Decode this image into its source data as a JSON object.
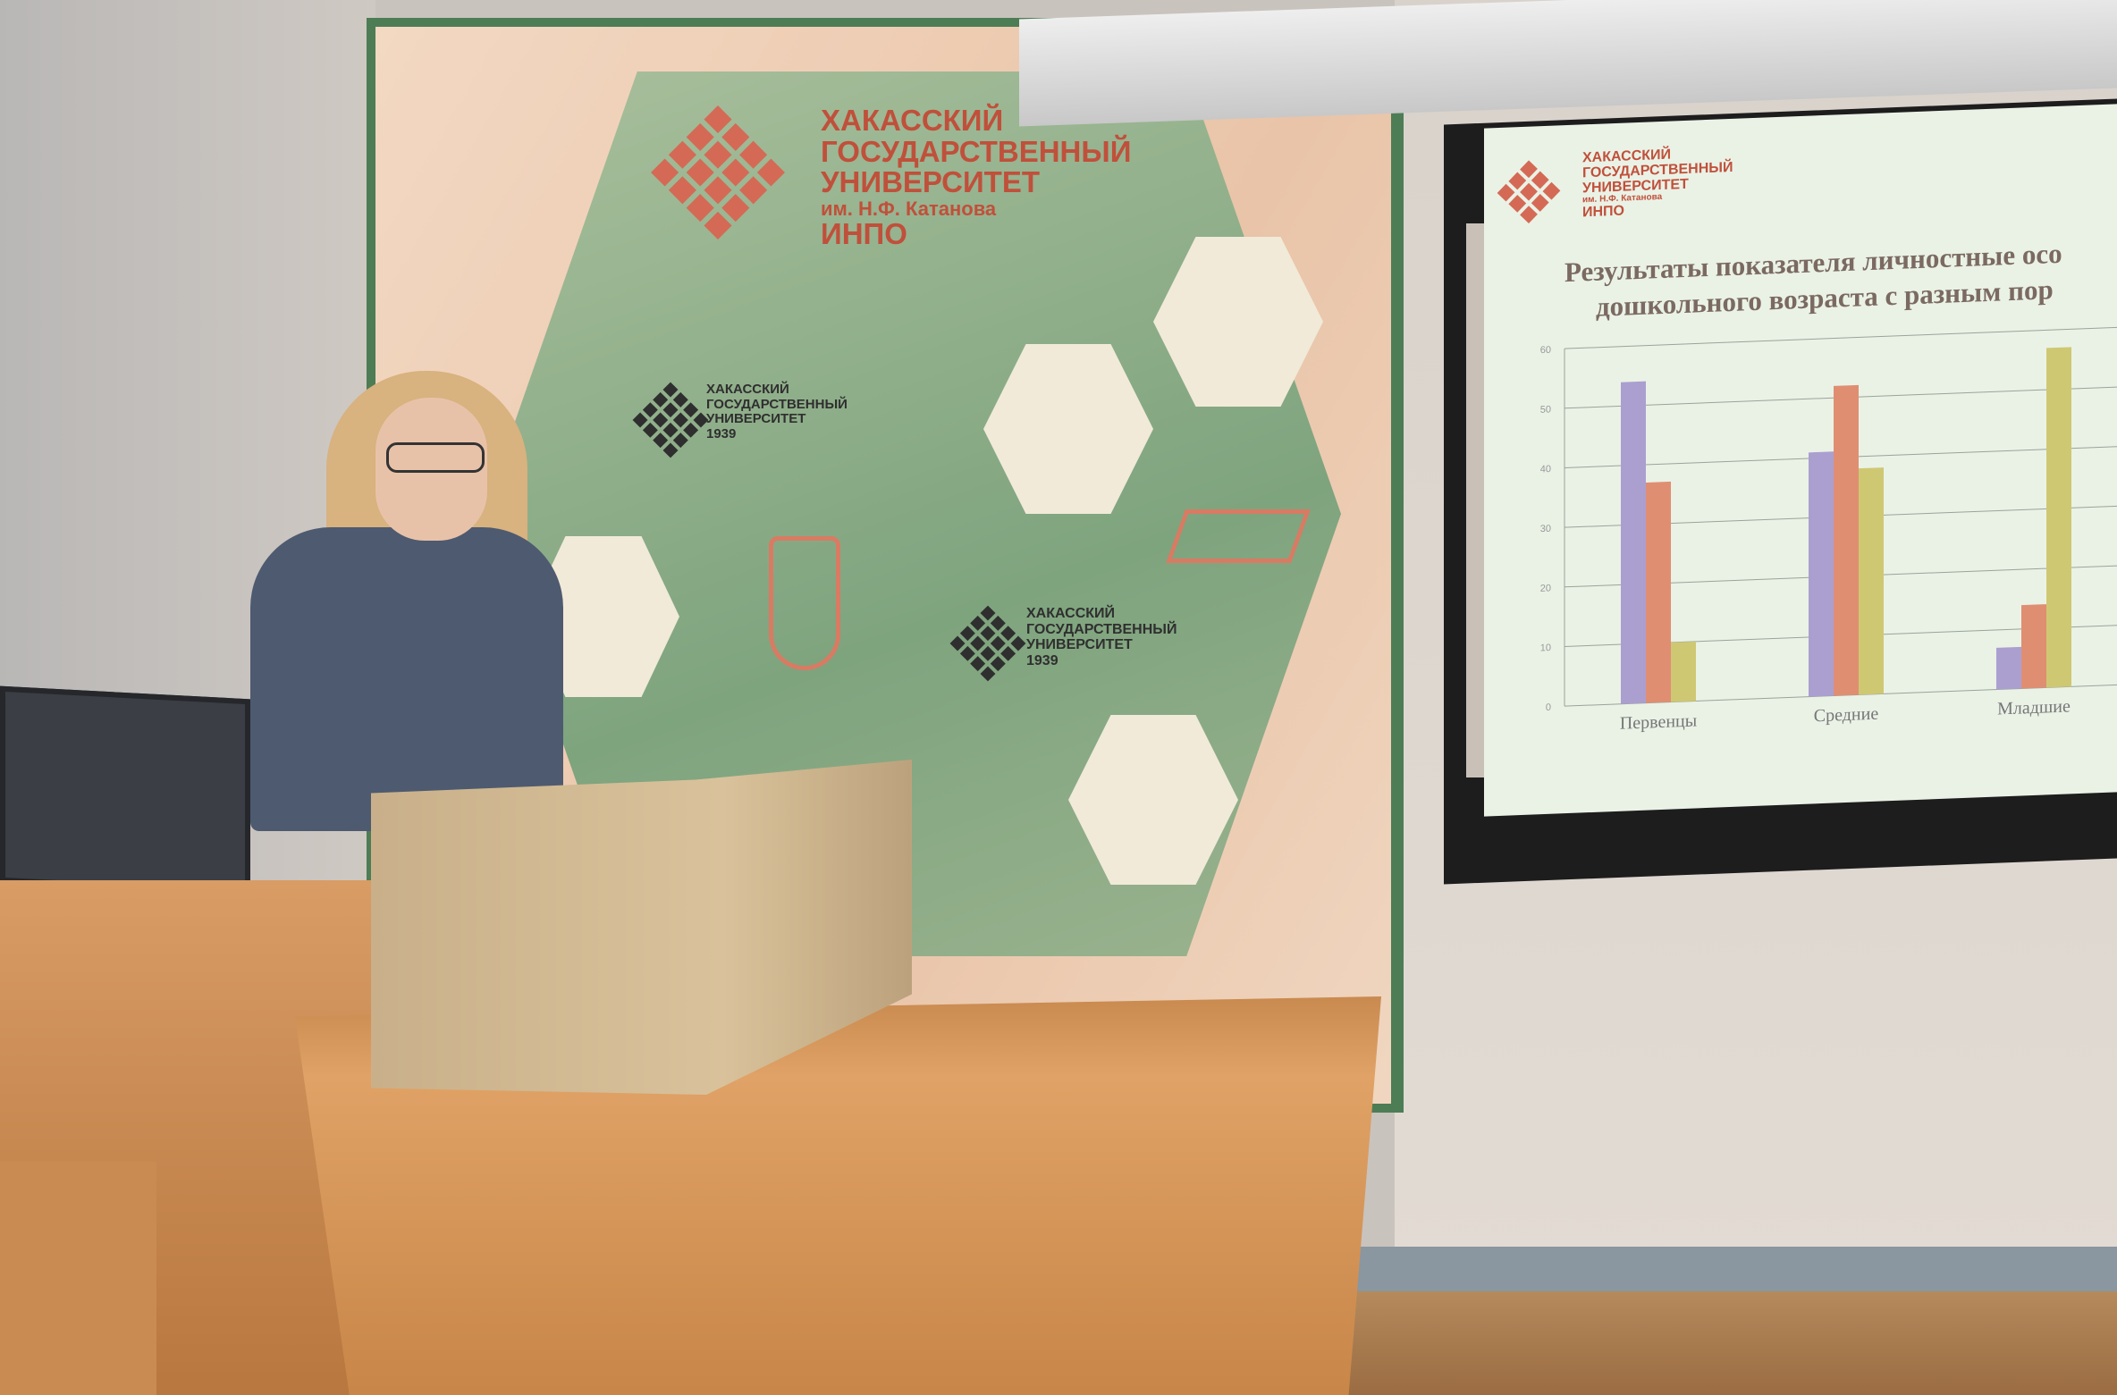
{
  "banner": {
    "university_line1": "ХАКАССКИЙ",
    "university_line2": "ГОСУДАРСТВЕННЫЙ",
    "university_line3": "УНИВЕРСИТЕТ",
    "university_line4": "им. Н.Ф. Катанова",
    "institute": "ИНПО",
    "small_logo_year": "1939",
    "colors": {
      "green": "#4d7d55",
      "logo": "#d46a55"
    }
  },
  "slide": {
    "title_line1": "Результаты показателя личностные осо",
    "title_line2": "дошкольного возраста с разным пор",
    "logo_line1": "ХАКАССКИЙ",
    "logo_line2": "ГОСУДАРСТВЕННЫЙ",
    "logo_line3": "УНИВЕРСИТЕТ",
    "logo_line4": "им. Н.Ф. Катанова",
    "logo_line5": "ИНПО"
  },
  "chart_data": {
    "type": "bar",
    "categories": [
      "Первенцы",
      "Средние",
      "Младшие"
    ],
    "series": [
      {
        "values": [
          54,
          41,
          7
        ],
        "color": "#ab9fd0"
      },
      {
        "values": [
          37,
          52,
          14
        ],
        "color": "#e08e72"
      },
      {
        "values": [
          10,
          38,
          57
        ],
        "color": "#cfc873"
      }
    ],
    "ylim": [
      0,
      60
    ],
    "yticks": [
      "0",
      "10",
      "20",
      "30",
      "40",
      "50",
      "60"
    ],
    "grid": true
  }
}
